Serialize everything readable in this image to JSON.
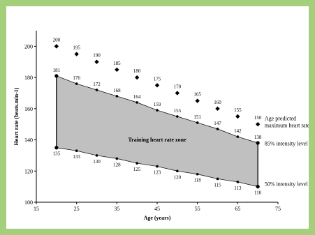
{
  "chart_data": {
    "type": "line",
    "title": "",
    "xlabel": "Age (years)",
    "ylabel": "Heart rate (beats.min-1)",
    "xlim": [
      15,
      75
    ],
    "ylim": [
      100,
      210
    ],
    "x_ticks": [
      "15",
      "25",
      "35",
      "45",
      "55",
      "65",
      "75"
    ],
    "y_ticks": [
      "100",
      "120",
      "140",
      "160",
      "180",
      "200"
    ],
    "x": [
      20,
      25,
      30,
      35,
      40,
      45,
      50,
      55,
      60,
      65,
      70
    ],
    "series": [
      {
        "name": "Age predicted maximum heart rate",
        "marker": "diamond",
        "values": [
          200,
          195,
          190,
          185,
          180,
          175,
          170,
          165,
          160,
          155,
          150
        ],
        "labels": [
          "200",
          "195",
          "190",
          "185",
          "180",
          "175",
          "170",
          "165",
          "160",
          "155",
          "150"
        ]
      },
      {
        "name": "85% intensity level",
        "marker": "circle",
        "values": [
          181,
          176,
          172,
          168,
          164,
          159,
          155,
          151,
          147,
          142,
          138
        ],
        "labels": [
          "181",
          "176",
          "172",
          "168",
          "164",
          "159",
          "155",
          "151",
          "147",
          "142",
          "138"
        ]
      },
      {
        "name": "50% intensity level",
        "marker": "circle",
        "values": [
          135,
          133,
          130,
          128,
          125,
          123,
          120,
          118,
          115,
          113,
          110
        ],
        "labels": [
          "135",
          "133",
          "130",
          "128",
          "125",
          "123",
          "120",
          "118",
          "115",
          "113",
          "110"
        ]
      }
    ],
    "zone_label": "Training heart rate zone",
    "annotations": {
      "max_line1": "Age predicted",
      "max_line2": "maximum heart rate",
      "high": "85% intensity level",
      "low": "50% intensity level"
    },
    "colors": {
      "zone_fill": "#c0c0c0",
      "background": "#a6cf7c"
    },
    "grid": false
  }
}
